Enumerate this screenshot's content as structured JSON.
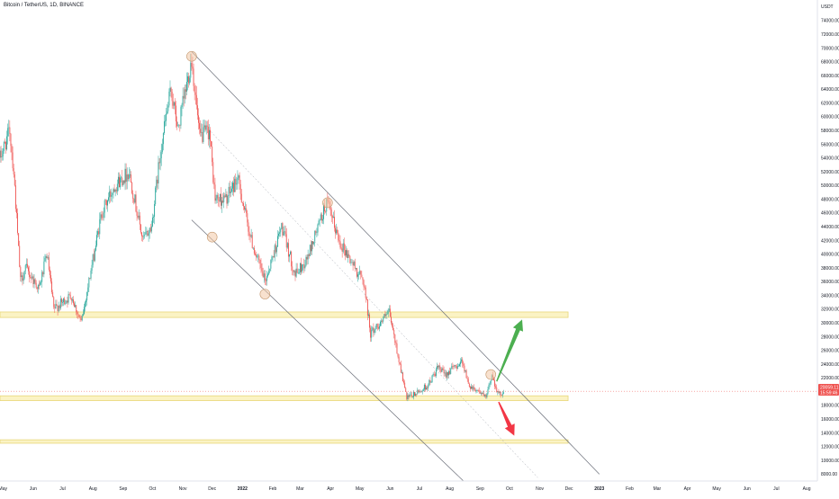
{
  "header": {
    "symbol": "Bitcoin / TetherUS",
    "interval": "1D",
    "exchange": "BINANCE",
    "currency": "USDT"
  },
  "price_tag": {
    "value": "20059.11",
    "countdown": "15:59:46",
    "color": "#ef5350"
  },
  "colors": {
    "up": "#26a69a",
    "down": "#ef5350",
    "zone_fill": "#fbf3c4",
    "zone_border": "#e8d77a",
    "channel": "#6b6f7a",
    "circle_fill": "#f3c9a5",
    "arrow_up": "#4caf50",
    "arrow_down": "#f23645"
  },
  "chart_data": {
    "type": "candlestick",
    "title": "Bitcoin / TetherUS, 1D, BINANCE",
    "y_unit": "USDT",
    "x_range": [
      "2021-04-28",
      "2023-08-12"
    ],
    "y_range": [
      7000,
      77000
    ],
    "y_ticks": [
      8000,
      10000,
      12000,
      14000,
      16000,
      18000,
      20000,
      22000,
      24000,
      26000,
      28000,
      30000,
      32000,
      34000,
      36000,
      38000,
      40000,
      42000,
      44000,
      46000,
      48000,
      50000,
      52000,
      54000,
      56000,
      58000,
      60000,
      62000,
      64000,
      66000,
      68000,
      70000,
      72000,
      74000
    ],
    "x_ticks": [
      {
        "label": "May",
        "date": "2021-05-01"
      },
      {
        "label": "Jun",
        "date": "2021-06-01"
      },
      {
        "label": "Jul",
        "date": "2021-07-01"
      },
      {
        "label": "Aug",
        "date": "2021-08-01"
      },
      {
        "label": "Sep",
        "date": "2021-09-01"
      },
      {
        "label": "Oct",
        "date": "2021-10-01"
      },
      {
        "label": "Nov",
        "date": "2021-11-01"
      },
      {
        "label": "Dec",
        "date": "2021-12-01"
      },
      {
        "label": "2022",
        "date": "2022-01-01"
      },
      {
        "label": "Feb",
        "date": "2022-02-01"
      },
      {
        "label": "Mar",
        "date": "2022-03-01"
      },
      {
        "label": "Apr",
        "date": "2022-04-01"
      },
      {
        "label": "May",
        "date": "2022-05-01"
      },
      {
        "label": "Jun",
        "date": "2022-06-01"
      },
      {
        "label": "Jul",
        "date": "2022-07-01"
      },
      {
        "label": "Aug",
        "date": "2022-08-01"
      },
      {
        "label": "Sep",
        "date": "2022-09-01"
      },
      {
        "label": "Oct",
        "date": "2022-10-01"
      },
      {
        "label": "Nov",
        "date": "2022-11-01"
      },
      {
        "label": "Dec",
        "date": "2022-12-01"
      },
      {
        "label": "2023",
        "date": "2023-01-01"
      },
      {
        "label": "Feb",
        "date": "2023-02-01"
      },
      {
        "label": "Mar",
        "date": "2023-03-01"
      },
      {
        "label": "Apr",
        "date": "2023-04-01"
      },
      {
        "label": "May",
        "date": "2023-05-01"
      },
      {
        "label": "Jun",
        "date": "2023-06-01"
      },
      {
        "label": "Jul",
        "date": "2023-07-01"
      },
      {
        "label": "Aug",
        "date": "2023-08-01"
      }
    ],
    "price_path": [
      [
        "2021-04-28",
        54000
      ],
      [
        "2021-05-08",
        58000
      ],
      [
        "2021-05-12",
        52000
      ],
      [
        "2021-05-19",
        36000
      ],
      [
        "2021-05-24",
        38000
      ],
      [
        "2021-06-07",
        35000
      ],
      [
        "2021-06-15",
        40000
      ],
      [
        "2021-06-22",
        32000
      ],
      [
        "2021-07-10",
        34000
      ],
      [
        "2021-07-20",
        30000
      ],
      [
        "2021-08-10",
        46000
      ],
      [
        "2021-08-23",
        50000
      ],
      [
        "2021-09-07",
        52000
      ],
      [
        "2021-09-21",
        42000
      ],
      [
        "2021-09-30",
        44000
      ],
      [
        "2021-10-10",
        56000
      ],
      [
        "2021-10-20",
        64000
      ],
      [
        "2021-10-27",
        58000
      ],
      [
        "2021-11-10",
        68500
      ],
      [
        "2021-11-18",
        57000
      ],
      [
        "2021-11-28",
        58000
      ],
      [
        "2021-12-04",
        48000
      ],
      [
        "2021-12-15",
        48000
      ],
      [
        "2021-12-27",
        51000
      ],
      [
        "2022-01-10",
        42000
      ],
      [
        "2022-01-24",
        36000
      ],
      [
        "2022-02-10",
        44000
      ],
      [
        "2022-02-24",
        37000
      ],
      [
        "2022-03-07",
        39000
      ],
      [
        "2022-03-28",
        47500
      ],
      [
        "2022-04-10",
        42000
      ],
      [
        "2022-04-26",
        38000
      ],
      [
        "2022-05-05",
        36000
      ],
      [
        "2022-05-12",
        28500
      ],
      [
        "2022-05-31",
        31500
      ],
      [
        "2022-06-13",
        22500
      ],
      [
        "2022-06-18",
        19000
      ],
      [
        "2022-07-01",
        20000
      ],
      [
        "2022-07-10",
        21000
      ],
      [
        "2022-07-20",
        23500
      ],
      [
        "2022-07-27",
        22500
      ],
      [
        "2022-08-14",
        24500
      ],
      [
        "2022-08-20",
        21000
      ],
      [
        "2022-09-01",
        20000
      ],
      [
        "2022-09-07",
        19000
      ],
      [
        "2022-09-13",
        22500
      ],
      [
        "2022-09-20",
        19500
      ],
      [
        "2022-09-25",
        20059
      ]
    ],
    "last_price": 20059.11,
    "horizontal_zones": [
      {
        "low": 30800,
        "high": 31600,
        "from": "2021-04-28",
        "to": "2022-11-30"
      },
      {
        "low": 18700,
        "high": 19400,
        "from": "2021-04-28",
        "to": "2022-11-30"
      },
      {
        "low": 12500,
        "high": 13000,
        "from": "2021-04-28",
        "to": "2022-11-30"
      }
    ],
    "channel_lines": [
      {
        "style": "solid",
        "from": [
          "2021-11-10",
          69500
        ],
        "to": [
          "2023-01-01",
          8000
        ]
      },
      {
        "style": "solid",
        "from": [
          "2021-11-10",
          45000
        ],
        "to": [
          "2022-08-15",
          7000
        ]
      },
      {
        "style": "dashed",
        "from": [
          "2021-11-22",
          59000
        ],
        "to": [
          "2022-10-30",
          7500
        ]
      }
    ],
    "touch_points": [
      [
        "2021-11-10",
        68800
      ],
      [
        "2021-12-01",
        42500
      ],
      [
        "2022-01-24",
        34200
      ],
      [
        "2022-03-29",
        47500
      ],
      [
        "2022-09-12",
        22500
      ]
    ],
    "projection_arrows": [
      {
        "direction": "up",
        "from": [
          "2022-09-18",
          21500
        ],
        "to": [
          "2022-10-14",
          30500
        ]
      },
      {
        "direction": "down",
        "from": [
          "2022-09-20",
          18500
        ],
        "to": [
          "2022-10-06",
          13600
        ]
      }
    ]
  }
}
